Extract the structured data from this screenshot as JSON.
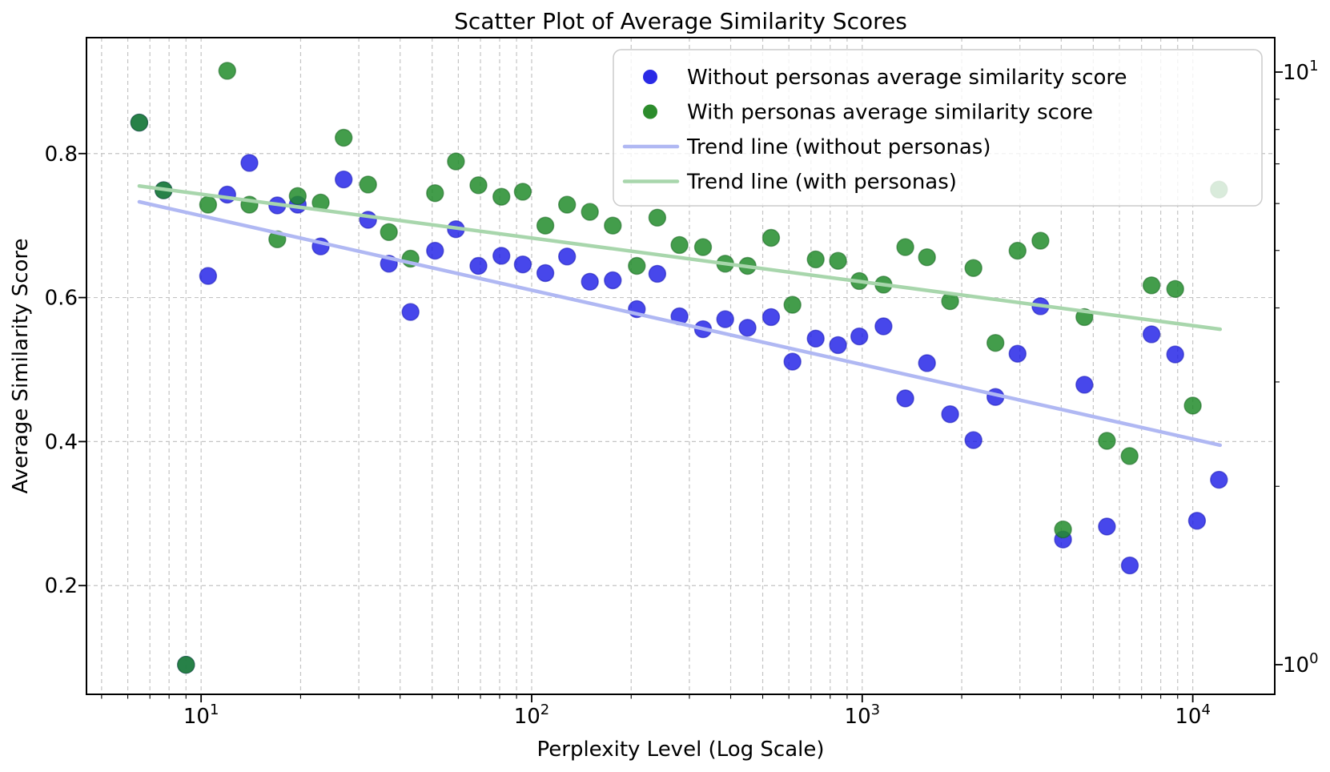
{
  "title": "Scatter Plot of Average Similarity Scores",
  "xlabel": "Perplexity Level (Log Scale)",
  "ylabel": "Average Similarity Score",
  "colors": {
    "blue_dot": "#1919e6",
    "blue_dot_edge": "#1212b4",
    "green_dot": "#228c2c",
    "green_dot_edge": "#14641e",
    "blue_trend": "#b0b8f3",
    "green_trend": "#a8d6ac",
    "grid": "#c4c4c4",
    "spine": "#000000",
    "legend_border": "#cccccc"
  },
  "legend": {
    "items": [
      {
        "label": "Without personas average similarity score",
        "marker": "dot",
        "color": "#2a2ae6"
      },
      {
        "label": "With personas average similarity score",
        "marker": "dot",
        "color": "#2c8c2c"
      },
      {
        "label": "Trend line (without personas)",
        "marker": "line",
        "color": "#b0b8f3"
      },
      {
        "label": "Trend line (with personas)",
        "marker": "line",
        "color": "#a8d6ac"
      }
    ]
  },
  "axes": {
    "x_ticks": [
      {
        "v": 10,
        "base": "10",
        "exp": "1"
      },
      {
        "v": 100,
        "base": "10",
        "exp": "2"
      },
      {
        "v": 1000,
        "base": "10",
        "exp": "3"
      },
      {
        "v": 10000,
        "base": "10",
        "exp": "4"
      }
    ],
    "y_ticks": [
      {
        "v": 0.2,
        "label": "0.2"
      },
      {
        "v": 0.4,
        "label": "0.4"
      },
      {
        "v": 0.6,
        "label": "0.6"
      },
      {
        "v": 0.8,
        "label": "0.8"
      }
    ],
    "right_ticks": [
      {
        "v": 1,
        "base": "10",
        "exp": "0"
      },
      {
        "v": 10,
        "base": "10",
        "exp": "1"
      }
    ]
  },
  "chart_data": {
    "type": "scatter",
    "x_scale": "log",
    "xlim": [
      4.5,
      17700
    ],
    "ylim": [
      0.049,
      0.961
    ],
    "grid": "both-dashed",
    "legend_position": "upper right",
    "series": [
      {
        "name": "Without personas average similarity score",
        "kind": "scatter",
        "points": [
          [
            6.5,
            0.843
          ],
          [
            7.7,
            0.749
          ],
          [
            9,
            0.09
          ],
          [
            10.5,
            0.63
          ],
          [
            12,
            0.743
          ],
          [
            14,
            0.787
          ],
          [
            17,
            0.728
          ],
          [
            19.6,
            0.729
          ],
          [
            23,
            0.671
          ],
          [
            27,
            0.764
          ],
          [
            32,
            0.708
          ],
          [
            37,
            0.647
          ],
          [
            43,
            0.58
          ],
          [
            51,
            0.665
          ],
          [
            59,
            0.695
          ],
          [
            69,
            0.644
          ],
          [
            81,
            0.658
          ],
          [
            94,
            0.646
          ],
          [
            110,
            0.634
          ],
          [
            128,
            0.657
          ],
          [
            150,
            0.622
          ],
          [
            176,
            0.624
          ],
          [
            208,
            0.584
          ],
          [
            240,
            0.633
          ],
          [
            280,
            0.574
          ],
          [
            330,
            0.556
          ],
          [
            385,
            0.57
          ],
          [
            450,
            0.558
          ],
          [
            530,
            0.573
          ],
          [
            615,
            0.511
          ],
          [
            723,
            0.543
          ],
          [
            845,
            0.534
          ],
          [
            980,
            0.546
          ],
          [
            1160,
            0.56
          ],
          [
            1350,
            0.46
          ],
          [
            1570,
            0.509
          ],
          [
            1845,
            0.438
          ],
          [
            2170,
            0.402
          ],
          [
            2530,
            0.462
          ],
          [
            2950,
            0.522
          ],
          [
            3460,
            0.588
          ],
          [
            4050,
            0.264
          ],
          [
            4700,
            0.479
          ],
          [
            5500,
            0.282
          ],
          [
            6450,
            0.228
          ],
          [
            7500,
            0.549
          ],
          [
            8850,
            0.521
          ],
          [
            10300,
            0.29
          ],
          [
            12000,
            0.347
          ]
        ]
      },
      {
        "name": "With personas average similarity score",
        "kind": "scatter",
        "points": [
          [
            6.5,
            0.843
          ],
          [
            7.7,
            0.749
          ],
          [
            9,
            0.09
          ],
          [
            10.5,
            0.729
          ],
          [
            12,
            0.915
          ],
          [
            14,
            0.729
          ],
          [
            17,
            0.681
          ],
          [
            19.6,
            0.741
          ],
          [
            23,
            0.732
          ],
          [
            27,
            0.822
          ],
          [
            32,
            0.757
          ],
          [
            37,
            0.691
          ],
          [
            43,
            0.654
          ],
          [
            51,
            0.745
          ],
          [
            59,
            0.789
          ],
          [
            69,
            0.756
          ],
          [
            81,
            0.74
          ],
          [
            94,
            0.747
          ],
          [
            110,
            0.7
          ],
          [
            128,
            0.729
          ],
          [
            150,
            0.719
          ],
          [
            176,
            0.7
          ],
          [
            208,
            0.644
          ],
          [
            240,
            0.711
          ],
          [
            280,
            0.673
          ],
          [
            330,
            0.67
          ],
          [
            385,
            0.647
          ],
          [
            450,
            0.644
          ],
          [
            530,
            0.683
          ],
          [
            615,
            0.59
          ],
          [
            723,
            0.653
          ],
          [
            845,
            0.651
          ],
          [
            980,
            0.623
          ],
          [
            1160,
            0.618
          ],
          [
            1350,
            0.67
          ],
          [
            1570,
            0.656
          ],
          [
            1845,
            0.595
          ],
          [
            2170,
            0.641
          ],
          [
            2530,
            0.537
          ],
          [
            2950,
            0.665
          ],
          [
            3460,
            0.679
          ],
          [
            4050,
            0.278
          ],
          [
            4700,
            0.573
          ],
          [
            5500,
            0.401
          ],
          [
            6440,
            0.38
          ],
          [
            7500,
            0.617
          ],
          [
            8850,
            0.612
          ],
          [
            10000,
            0.45
          ],
          [
            12000,
            0.75
          ]
        ]
      },
      {
        "name": "Trend line (without personas)",
        "kind": "line",
        "points": [
          [
            6.5,
            0.733
          ],
          [
            12100,
            0.395
          ]
        ]
      },
      {
        "name": "Trend line (with personas)",
        "kind": "line",
        "points": [
          [
            6.5,
            0.755
          ],
          [
            12100,
            0.556
          ]
        ]
      }
    ]
  }
}
